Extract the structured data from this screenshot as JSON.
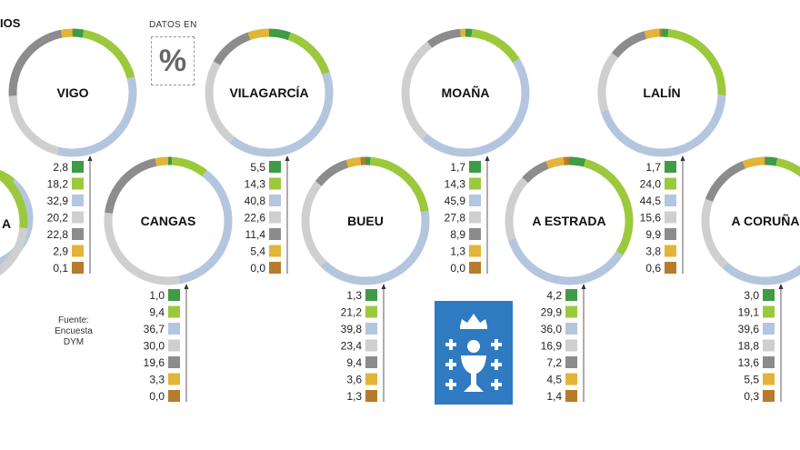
{
  "header_fragment": "IOS",
  "datos_label": "DATOS EN",
  "percent_symbol": "%",
  "source": {
    "line1": "Fuente:",
    "line2": "Encuesta",
    "line3": "DYM"
  },
  "colors": {
    "c1": "#3f9b45",
    "c2": "#9cc93c",
    "c3": "#b4c6df",
    "c4": "#cfcfcf",
    "c5": "#8c8c8c",
    "c6": "#e3b437",
    "c7": "#b87a2b",
    "flag": "#2f7ac0"
  },
  "chart_data": {
    "type": "donut",
    "category_order": [
      "c1",
      "c2",
      "c3",
      "c4",
      "c5",
      "c6",
      "c7"
    ],
    "charts": [
      {
        "city": "",
        "values": [
          null,
          null,
          null,
          null,
          null,
          null,
          null
        ],
        "labels": [
          "",
          "",
          "",
          "",
          "",
          "",
          ""
        ]
      },
      {
        "city": "VIGO",
        "values": [
          2.8,
          18.2,
          32.9,
          20.2,
          22.8,
          2.9,
          0.1
        ],
        "labels": [
          "2,8",
          "18,2",
          "32,9",
          "20,2",
          "22,8",
          "2,9",
          "0,1"
        ]
      },
      {
        "city": "VILAGARCÍA",
        "values": [
          5.5,
          14.3,
          40.8,
          22.6,
          11.4,
          5.4,
          0.0
        ],
        "labels": [
          "5,5",
          "14,3",
          "40,8",
          "22,6",
          "11,4",
          "5,4",
          "0,0"
        ]
      },
      {
        "city": "MOAÑA",
        "values": [
          1.7,
          14.3,
          45.9,
          27.8,
          8.9,
          1.3,
          0.0
        ],
        "labels": [
          "1,7",
          "14,3",
          "45,9",
          "27,8",
          "8,9",
          "1,3",
          "0,0"
        ]
      },
      {
        "city": "LALÍN",
        "values": [
          1.7,
          24.0,
          44.5,
          15.6,
          9.9,
          3.8,
          0.6
        ],
        "labels": [
          "1,7",
          "24,0",
          "44,5",
          "15,6",
          "9,9",
          "3,8",
          "0,6"
        ]
      },
      {
        "city": "CANGAS",
        "values": [
          1.0,
          9.4,
          36.7,
          30.0,
          19.6,
          3.3,
          0.0
        ],
        "labels": [
          "1,0",
          "9,4",
          "36,7",
          "30,0",
          "19,6",
          "3,3",
          "0,0"
        ]
      },
      {
        "city": "BUEU",
        "values": [
          1.3,
          21.2,
          39.8,
          23.4,
          9.4,
          3.6,
          1.3
        ],
        "labels": [
          "1,3",
          "21,2",
          "39,8",
          "23,4",
          "9,4",
          "3,6",
          "1,3"
        ]
      },
      {
        "city": "A ESTRADA",
        "values": [
          4.2,
          29.9,
          36.0,
          16.9,
          7.2,
          4.5,
          1.4
        ],
        "labels": [
          "4,2",
          "29,9",
          "36,0",
          "16,9",
          "7,2",
          "4,5",
          "1,4"
        ]
      },
      {
        "city": "A CORUÑA",
        "values": [
          3.0,
          19.1,
          39.6,
          18.8,
          13.6,
          5.5,
          0.3
        ],
        "labels": [
          "3,0",
          "19,1",
          "39,6",
          "18,8",
          "13,6",
          "5,5",
          "0,3"
        ]
      },
      {
        "city": "A",
        "values": [
          null,
          null,
          null,
          null,
          null,
          null,
          null
        ],
        "labels": [
          "",
          "",
          "",
          "",
          "",
          "",
          ""
        ]
      }
    ]
  }
}
